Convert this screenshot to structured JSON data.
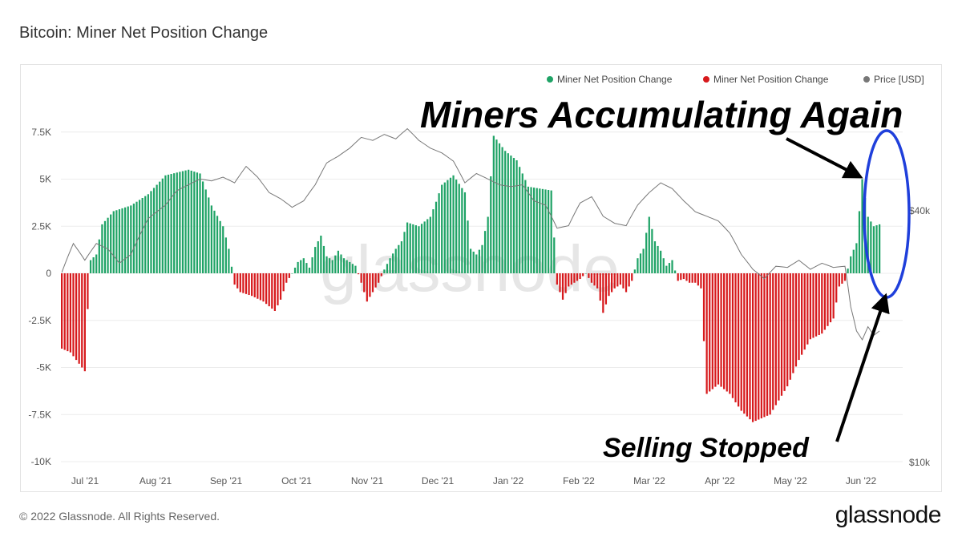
{
  "chart_title": "Bitcoin: Miner Net Position Change",
  "footer": {
    "copyright": "© 2022 Glassnode. All Rights Reserved.",
    "brand": "glassnode"
  },
  "watermark": "glassnode",
  "colors": {
    "positive": "#1fa366",
    "negative": "#d7191c",
    "price": "#777777",
    "circle": "#1f3fdb",
    "grid": "#ececec"
  },
  "annotations": {
    "accumulating": "Miners Accumulating Again",
    "selling": "Selling Stopped"
  },
  "chart_data": {
    "type": "bar",
    "title": "Bitcoin: Miner Net Position Change",
    "ylim": [
      -10000,
      10000
    ],
    "y_ticks": [
      "-10K",
      "-7.5K",
      "-5K",
      "-2.5K",
      "0",
      "2.5K",
      "5K",
      "7.5K"
    ],
    "y_tick_values": [
      -10000,
      -7500,
      -5000,
      -2500,
      0,
      2500,
      5000,
      7500
    ],
    "right_ticks": [
      "$10k",
      "$40k"
    ],
    "x_ticks": [
      "Jul '21",
      "Aug '21",
      "Sep '21",
      "Oct '21",
      "Nov '21",
      "Dec '21",
      "Jan '22",
      "Feb '22",
      "Mar '22",
      "Apr '22",
      "May '22",
      "Jun '22"
    ],
    "legend": [
      {
        "label": "Miner Net Position Change",
        "color": "#1fa366"
      },
      {
        "label": "Miner Net Position Change",
        "color": "#d7191c"
      },
      {
        "label": "Price [USD]",
        "color": "#777777"
      }
    ],
    "bar_keypoints": [
      [
        0,
        -4000
      ],
      [
        3,
        -4200
      ],
      [
        6,
        -4800
      ],
      [
        8,
        -5200
      ],
      [
        9,
        -1900
      ],
      [
        10,
        700
      ],
      [
        12,
        1000
      ],
      [
        14,
        2600
      ],
      [
        18,
        3300
      ],
      [
        24,
        3600
      ],
      [
        30,
        4200
      ],
      [
        36,
        5200
      ],
      [
        44,
        5500
      ],
      [
        48,
        5300
      ],
      [
        52,
        3600
      ],
      [
        56,
        2500
      ],
      [
        58,
        1300
      ],
      [
        60,
        -600
      ],
      [
        62,
        -1000
      ],
      [
        66,
        -1200
      ],
      [
        70,
        -1500
      ],
      [
        74,
        -2000
      ],
      [
        76,
        -1400
      ],
      [
        78,
        -500
      ],
      [
        80,
        0
      ],
      [
        82,
        600
      ],
      [
        84,
        800
      ],
      [
        86,
        300
      ],
      [
        88,
        1400
      ],
      [
        90,
        2000
      ],
      [
        92,
        900
      ],
      [
        94,
        700
      ],
      [
        96,
        1200
      ],
      [
        98,
        800
      ],
      [
        100,
        600
      ],
      [
        102,
        400
      ],
      [
        104,
        -500
      ],
      [
        106,
        -1500
      ],
      [
        108,
        -1000
      ],
      [
        110,
        -500
      ],
      [
        112,
        200
      ],
      [
        114,
        800
      ],
      [
        116,
        1300
      ],
      [
        118,
        1700
      ],
      [
        120,
        2700
      ],
      [
        124,
        2500
      ],
      [
        128,
        3000
      ],
      [
        130,
        3800
      ],
      [
        132,
        4700
      ],
      [
        136,
        5200
      ],
      [
        140,
        4300
      ],
      [
        142,
        1300
      ],
      [
        144,
        1000
      ],
      [
        146,
        1500
      ],
      [
        148,
        3000
      ],
      [
        150,
        7300
      ],
      [
        154,
        6500
      ],
      [
        158,
        6000
      ],
      [
        162,
        4600
      ],
      [
        166,
        4500
      ],
      [
        170,
        4400
      ],
      [
        172,
        -600
      ],
      [
        174,
        -1400
      ],
      [
        176,
        -700
      ],
      [
        178,
        -500
      ],
      [
        180,
        -300
      ],
      [
        182,
        0
      ],
      [
        184,
        -500
      ],
      [
        186,
        -800
      ],
      [
        188,
        -2100
      ],
      [
        190,
        -1200
      ],
      [
        192,
        -800
      ],
      [
        194,
        -600
      ],
      [
        196,
        -1000
      ],
      [
        198,
        -400
      ],
      [
        200,
        800
      ],
      [
        202,
        1300
      ],
      [
        204,
        3000
      ],
      [
        206,
        1700
      ],
      [
        208,
        1200
      ],
      [
        210,
        400
      ],
      [
        212,
        700
      ],
      [
        214,
        -400
      ],
      [
        216,
        -300
      ],
      [
        218,
        -500
      ],
      [
        220,
        -500
      ],
      [
        222,
        -800
      ],
      [
        224,
        -6400
      ],
      [
        228,
        -5900
      ],
      [
        232,
        -6400
      ],
      [
        236,
        -7300
      ],
      [
        240,
        -7900
      ],
      [
        246,
        -7500
      ],
      [
        252,
        -6000
      ],
      [
        256,
        -4600
      ],
      [
        260,
        -3500
      ],
      [
        264,
        -3200
      ],
      [
        268,
        -2400
      ],
      [
        270,
        -700
      ],
      [
        272,
        -400
      ],
      [
        274,
        900
      ],
      [
        276,
        1600
      ],
      [
        278,
        5000
      ],
      [
        280,
        3000
      ],
      [
        282,
        2500
      ],
      [
        284,
        2600
      ]
    ],
    "price_keypoints": [
      [
        0,
        29000
      ],
      [
        4,
        34000
      ],
      [
        8,
        31000
      ],
      [
        12,
        34000
      ],
      [
        16,
        33000
      ],
      [
        20,
        30500
      ],
      [
        24,
        32000
      ],
      [
        30,
        39000
      ],
      [
        36,
        42000
      ],
      [
        40,
        45500
      ],
      [
        44,
        47000
      ],
      [
        48,
        48500
      ],
      [
        52,
        48000
      ],
      [
        56,
        49000
      ],
      [
        60,
        47500
      ],
      [
        64,
        52000
      ],
      [
        68,
        49000
      ],
      [
        72,
        45000
      ],
      [
        76,
        43500
      ],
      [
        80,
        41500
      ],
      [
        84,
        43000
      ],
      [
        88,
        47000
      ],
      [
        92,
        53000
      ],
      [
        96,
        55000
      ],
      [
        100,
        57500
      ],
      [
        104,
        61000
      ],
      [
        108,
        60000
      ],
      [
        112,
        62000
      ],
      [
        116,
        60500
      ],
      [
        120,
        64000
      ],
      [
        124,
        60000
      ],
      [
        128,
        57500
      ],
      [
        132,
        56000
      ],
      [
        136,
        53500
      ],
      [
        140,
        47500
      ],
      [
        144,
        50000
      ],
      [
        148,
        48500
      ],
      [
        152,
        47000
      ],
      [
        156,
        46500
      ],
      [
        160,
        47000
      ],
      [
        164,
        43000
      ],
      [
        168,
        42000
      ],
      [
        172,
        37000
      ],
      [
        176,
        37500
      ],
      [
        180,
        42500
      ],
      [
        184,
        44000
      ],
      [
        188,
        39500
      ],
      [
        192,
        38000
      ],
      [
        196,
        37500
      ],
      [
        200,
        42000
      ],
      [
        204,
        45000
      ],
      [
        208,
        47500
      ],
      [
        212,
        46000
      ],
      [
        216,
        43000
      ],
      [
        220,
        40500
      ],
      [
        224,
        39500
      ],
      [
        228,
        38500
      ],
      [
        232,
        36000
      ],
      [
        236,
        32000
      ],
      [
        240,
        29500
      ],
      [
        244,
        28000
      ],
      [
        248,
        30000
      ],
      [
        252,
        29800
      ],
      [
        256,
        31000
      ],
      [
        260,
        29500
      ],
      [
        264,
        30500
      ],
      [
        268,
        29800
      ],
      [
        272,
        30000
      ],
      [
        274,
        24000
      ],
      [
        276,
        21000
      ],
      [
        278,
        20000
      ],
      [
        280,
        21500
      ],
      [
        282,
        20500
      ],
      [
        284,
        21000
      ]
    ]
  }
}
